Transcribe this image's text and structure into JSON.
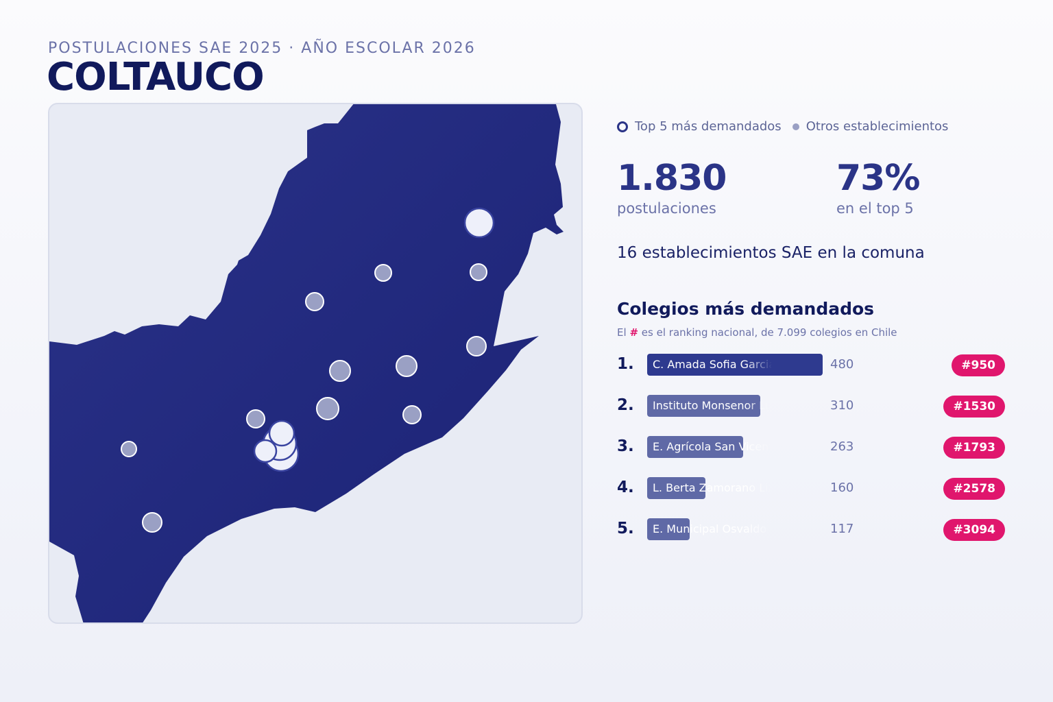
{
  "header": {
    "subtitle": "POSTULACIONES SAE 2025 · AÑO ESCOLAR 2026",
    "title": "COLTAUCO"
  },
  "legend": {
    "top5_label": "Top 5 más demandados",
    "others_label": "Otros establecimientos"
  },
  "stats": {
    "applications_value": "1.830",
    "applications_label": "postulaciones",
    "top5_share_value": "73%",
    "top5_share_label": "en el top 5"
  },
  "summary": "16 establecimientos SAE en la comuna",
  "ranking": {
    "title": "Colegios más demandados",
    "note_prefix": "El",
    "note_hash": "#",
    "note_suffix": "es el ranking nacional, de 7.099 colegios en Chile",
    "max_value": 480,
    "items": [
      {
        "rank": "1.",
        "name": "C. Amada Sofia Garcia",
        "value": 480,
        "value_text": "480",
        "badge": "#950",
        "color": "#2e3a8f"
      },
      {
        "rank": "2.",
        "name": "Instituto Monsenor Lu",
        "value": 310,
        "value_text": "310",
        "badge": "#1530",
        "color": "#5f69a6"
      },
      {
        "rank": "3.",
        "name": "E. Agrícola San Vicent",
        "value": 263,
        "value_text": "263",
        "badge": "#1793",
        "color": "#5f69a6"
      },
      {
        "rank": "4.",
        "name": "L. Berta Zamorano Liza",
        "value": 160,
        "value_text": "160",
        "badge": "#2578",
        "color": "#5f69a6"
      },
      {
        "rank": "5.",
        "name": "E. Municipal Osvaldo R.",
        "value": 117,
        "value_text": "117",
        "badge": "#3094",
        "color": "#5f69a6"
      }
    ]
  },
  "map": {
    "colors": {
      "commune_fill": "#222b80",
      "background": "#e8ebf4",
      "other_marker": "#9aa0c4",
      "top_marker": "#eef0fa"
    },
    "markers_shown": "16 school markers (5 top, 11 others)"
  }
}
